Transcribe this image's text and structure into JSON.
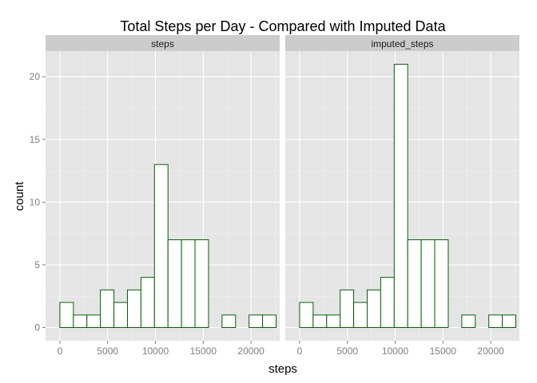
{
  "chart_data": {
    "type": "bar",
    "title": "Total Steps per Day - Compared with Imputed Data",
    "xlabel": "steps",
    "ylabel": "count",
    "xlim": [
      -1500,
      23000
    ],
    "ylim": [
      -1.05,
      22.05
    ],
    "xticks": [
      0,
      5000,
      10000,
      15000,
      20000
    ],
    "xtick_labels": [
      "0",
      "5000",
      "10000",
      "15000",
      "20000"
    ],
    "yticks": [
      0,
      5,
      10,
      15,
      20
    ],
    "ytick_labels": [
      "0",
      "5",
      "10",
      "15",
      "20"
    ],
    "bin_width": 1414,
    "bin_starts": [
      -1414,
      0,
      1414,
      2828,
      4242,
      5656,
      7070,
      8484,
      9898,
      11312,
      12726,
      14140,
      15554,
      16968,
      18382,
      19796,
      21210
    ],
    "grid": true,
    "colors": {
      "bar_fill": "#ffffff",
      "bar_outline": "#006400",
      "panel_background": "#e5e5e5",
      "grid_major": "#ffffff",
      "grid_minor": "#f2f2f2",
      "strip_background": "#cccccc"
    },
    "panels": [
      {
        "strip": "steps",
        "counts": [
          0,
          2,
          1,
          1,
          3,
          2,
          3,
          4,
          13,
          7,
          7,
          7,
          0,
          1,
          0,
          1,
          1
        ]
      },
      {
        "strip": "imputed_steps",
        "counts": [
          0,
          2,
          1,
          1,
          3,
          2,
          3,
          4,
          21,
          7,
          7,
          7,
          0,
          1,
          0,
          1,
          1
        ]
      }
    ]
  }
}
